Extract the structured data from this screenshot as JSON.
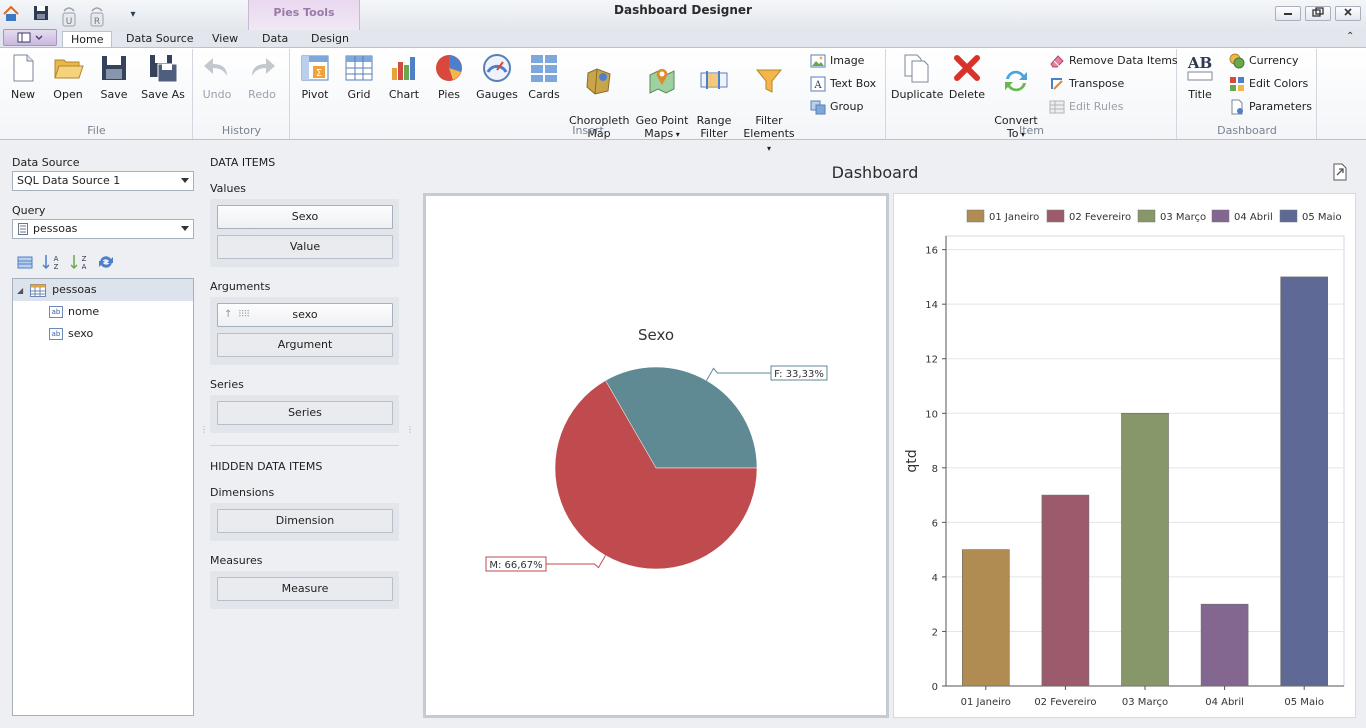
{
  "window": {
    "title": "Dashboard Designer",
    "context_group": "Pies Tools",
    "controls": [
      "minimize",
      "restore",
      "close"
    ]
  },
  "quick_access": [
    "home-icon",
    "save-icon",
    "undo-icon",
    "redo-icon",
    "customize-icon"
  ],
  "qat_letters": {
    "undo": "U",
    "redo": "R"
  },
  "tabs": [
    {
      "label": "Home",
      "active": true
    },
    {
      "label": "Data Source",
      "active": false
    },
    {
      "label": "View",
      "active": false
    },
    {
      "label": "Data",
      "active": false
    },
    {
      "label": "Design",
      "active": false
    }
  ],
  "ribbon": {
    "file": {
      "label": "File",
      "buttons": [
        {
          "label": "New",
          "icon": "new-document-icon"
        },
        {
          "label": "Open",
          "icon": "open-folder-icon"
        },
        {
          "label": "Save",
          "icon": "save-icon"
        },
        {
          "label": "Save As",
          "icon": "save-as-icon"
        }
      ]
    },
    "history": {
      "label": "History",
      "buttons": [
        {
          "label": "Undo",
          "icon": "undo-icon",
          "disabled": true
        },
        {
          "label": "Redo",
          "icon": "redo-icon",
          "disabled": true
        }
      ]
    },
    "insert": {
      "label": "Insert",
      "buttons": [
        {
          "label": "Pivot",
          "icon": "pivot-icon"
        },
        {
          "label": "Grid",
          "icon": "grid-icon"
        },
        {
          "label": "Chart",
          "icon": "chart-icon"
        },
        {
          "label": "Pies",
          "icon": "pie-icon"
        },
        {
          "label": "Gauges",
          "icon": "gauge-icon"
        },
        {
          "label": "Cards",
          "icon": "cards-icon"
        },
        {
          "label": "Choropleth\nMap",
          "icon": "choropleth-map-icon"
        },
        {
          "label": "Geo Point\nMaps",
          "icon": "geo-point-map-icon"
        },
        {
          "label": "Range\nFilter",
          "icon": "range-filter-icon"
        },
        {
          "label": "Filter\nElements",
          "icon": "filter-icon"
        }
      ],
      "small": [
        {
          "label": "Image",
          "icon": "image-icon"
        },
        {
          "label": "Text Box",
          "icon": "text-box-icon"
        },
        {
          "label": "Group",
          "icon": "group-icon"
        }
      ]
    },
    "item": {
      "label": "Item",
      "buttons": [
        {
          "label": "Duplicate",
          "icon": "duplicate-icon"
        },
        {
          "label": "Delete",
          "icon": "delete-icon"
        },
        {
          "label": "Convert\nTo",
          "icon": "convert-icon"
        }
      ],
      "small": [
        {
          "label": "Remove Data Items",
          "icon": "eraser-icon",
          "disabled": false
        },
        {
          "label": "Transpose",
          "icon": "transpose-icon",
          "disabled": false
        },
        {
          "label": "Edit Rules",
          "icon": "rules-icon",
          "disabled": true
        }
      ]
    },
    "dashboard": {
      "label": "Dashboard",
      "buttons": [
        {
          "label": "Title",
          "icon": "title-icon",
          "glyph": "AB"
        }
      ],
      "small": [
        {
          "label": "Currency",
          "icon": "currency-icon"
        },
        {
          "label": "Edit Colors",
          "icon": "colors-icon"
        },
        {
          "label": "Parameters",
          "icon": "parameters-icon"
        }
      ]
    }
  },
  "left_panel": {
    "data_source_label": "Data Source",
    "data_source_value": "SQL Data Source 1",
    "query_label": "Query",
    "query_value": "pessoas",
    "tree": {
      "root": "pessoas",
      "fields": [
        "nome",
        "sexo"
      ],
      "field_type": "ab"
    }
  },
  "data_items": {
    "title": "DATA ITEMS",
    "values_label": "Values",
    "values": [
      "Sexo",
      "Value"
    ],
    "arguments_label": "Arguments",
    "arguments": [
      "sexo",
      "Argument"
    ],
    "series_label": "Series",
    "series": [
      "Series"
    ],
    "hidden_title": "HIDDEN DATA ITEMS",
    "dimensions_label": "Dimensions",
    "dimensions": [
      "Dimension"
    ],
    "measures_label": "Measures",
    "measures": [
      "Measure"
    ]
  },
  "dashboard": {
    "title": "Dashboard"
  },
  "chart_data": [
    {
      "type": "pie",
      "title": "Sexo",
      "categories": [
        "F",
        "M"
      ],
      "values": [
        33.33,
        66.67
      ],
      "labels": [
        "F: 33,33%",
        "M: 66,67%"
      ],
      "colors": [
        "#5f8a93",
        "#bf4b4e"
      ]
    },
    {
      "type": "bar",
      "title": "",
      "categories": [
        "01 Janeiro",
        "02 Fevereiro",
        "03 Março",
        "04 Abril",
        "05 Maio"
      ],
      "values": [
        5,
        7,
        10,
        3,
        15
      ],
      "colors": [
        "#b08b52",
        "#9b5b6c",
        "#87976a",
        "#836790",
        "#5e6a95"
      ],
      "xlabel": "",
      "ylabel": "qtd",
      "ylim": [
        0,
        16.5
      ],
      "yticks": [
        0,
        2,
        4,
        6,
        8,
        10,
        12,
        14,
        16
      ],
      "legend": "top",
      "grid": true
    }
  ]
}
